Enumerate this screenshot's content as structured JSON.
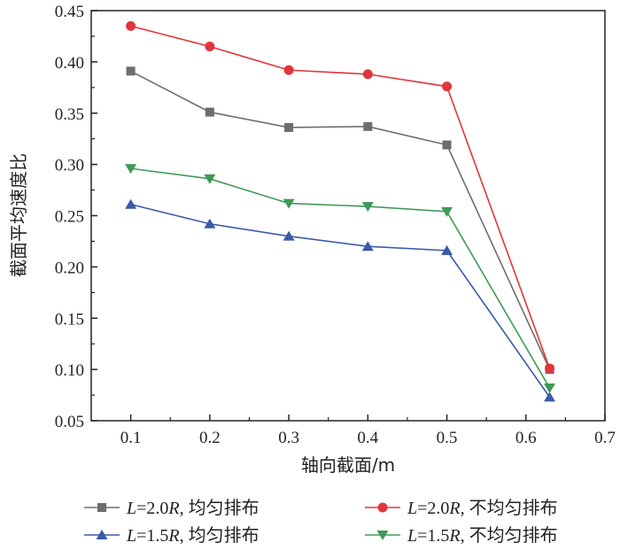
{
  "chart_data": {
    "type": "line",
    "title": "",
    "xlabel": "轴向截面/m",
    "ylabel": "截面平均速度比",
    "xlim": [
      0.05,
      0.7
    ],
    "ylim": [
      0.05,
      0.45
    ],
    "xticks": [
      "0.1",
      "0.2",
      "0.3",
      "0.4",
      "0.5",
      "0.6",
      "0.7"
    ],
    "yticks": [
      "0.05",
      "0.10",
      "0.15",
      "0.20",
      "0.25",
      "0.30",
      "0.35",
      "0.40",
      "0.45"
    ],
    "grid": false,
    "legend_placement": "bottom",
    "x": [
      0.1,
      0.2,
      0.3,
      0.4,
      0.5,
      0.63
    ],
    "series": [
      {
        "name_pre": "L",
        "name_mid": "=2.0",
        "name_r": "R",
        "name_post": ", 均匀排布",
        "color": "#6d6d6d",
        "marker": "square",
        "values": [
          0.391,
          0.351,
          0.336,
          0.337,
          0.319,
          0.1
        ]
      },
      {
        "name_pre": "L",
        "name_mid": "=2.0",
        "name_r": "R",
        "name_post": ", 不均匀排布",
        "color": "#e0353c",
        "marker": "circle",
        "values": [
          0.435,
          0.415,
          0.392,
          0.388,
          0.376,
          0.101
        ]
      },
      {
        "name_pre": "L",
        "name_mid": "=1.5",
        "name_r": "R",
        "name_post": ", 均匀排布",
        "color": "#3a5ba8",
        "marker": "triangle-up",
        "values": [
          0.261,
          0.242,
          0.23,
          0.22,
          0.216,
          0.073
        ]
      },
      {
        "name_pre": "L",
        "name_mid": "=1.5",
        "name_r": "R",
        "name_post": ", 不均匀排布",
        "color": "#3f9a55",
        "marker": "triangle-down",
        "values": [
          0.296,
          0.286,
          0.262,
          0.259,
          0.254,
          0.082
        ]
      }
    ]
  }
}
